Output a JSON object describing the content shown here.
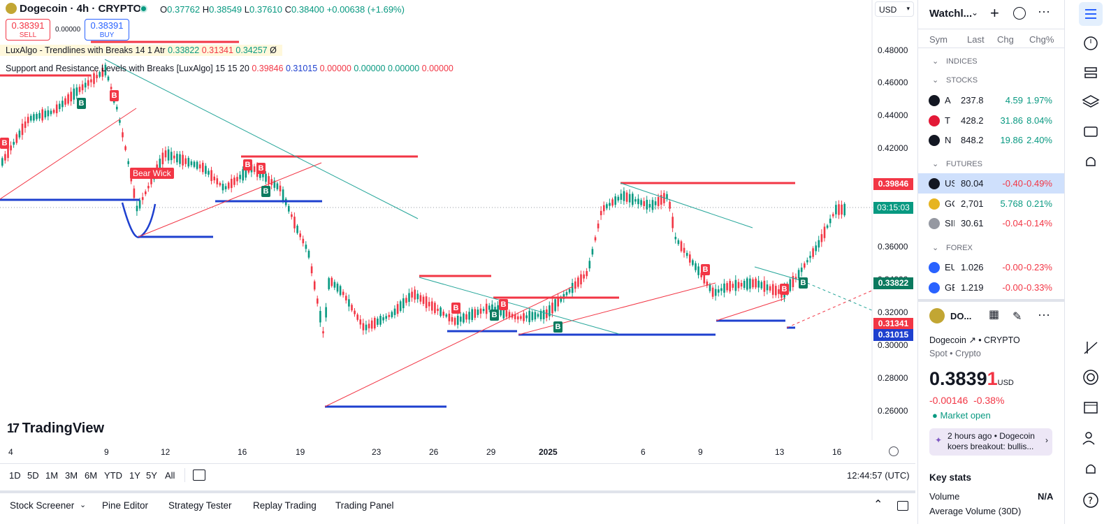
{
  "header": {
    "symbol_title": "Dogecoin · 4h · CRYPTO",
    "o_key": "O",
    "o_val": "0.37762",
    "h_key": "H",
    "h_val": "0.38549",
    "l_key": "L",
    "l_val": "0.37610",
    "c_key": "C",
    "c_val": "0.38400",
    "change": "+0.00638 (+1.69%)",
    "currency": "USD"
  },
  "trade": {
    "sell_price": "0.38391",
    "sell_label": "SELL",
    "spread": "0.00000",
    "buy_price": "0.38391",
    "buy_label": "BUY"
  },
  "indicators": [
    {
      "name": "LuxAlgo - Trendlines with Breaks 14 1 Atr",
      "v1": "0.33822",
      "v2": "0.31341",
      "v3": "0.34257",
      "v4": "Ø"
    },
    {
      "name": "Support and Resistance Levels with Breaks [LuxAlgo] 15 15 20",
      "v1": "0.39846",
      "v2": "0.31015",
      "v3": "0.00000",
      "v4": "0.00000",
      "v5": "0.00000",
      "v6": "0.00000"
    }
  ],
  "chart_labels": {
    "bear_wick": "Bear Wick",
    "b": "B",
    "watermark": "TradingView"
  },
  "price_axis": [
    "0.48000",
    "0.46000",
    "0.44000",
    "0.42000",
    "0.36000",
    "0.34000",
    "0.32000",
    "0.30000",
    "0.28000",
    "0.26000"
  ],
  "price_tags": {
    "resistance": "0.39846",
    "countdown": "03:15:03",
    "trend_upper": "0.33822",
    "trend_lower": "0.31341",
    "support": "0.31015"
  },
  "date_axis": [
    "4",
    "9",
    "12",
    "16",
    "19",
    "23",
    "26",
    "29",
    "2025",
    "6",
    "9",
    "13",
    "16"
  ],
  "range_buttons": [
    "1D",
    "5D",
    "1M",
    "3M",
    "6M",
    "YTD",
    "1Y",
    "5Y",
    "All"
  ],
  "clock": "12:44:57 (UTC)",
  "bottom_tabs": [
    "Stock Screener",
    "Pine Editor",
    "Strategy Tester",
    "Replay Trading",
    "Trading Panel"
  ],
  "watchlist": {
    "title": "Watchl...",
    "columns": [
      "Sym",
      "Last",
      "Chg",
      "Chg%"
    ],
    "sections": [
      "INDICES",
      "STOCKS",
      "FUTURES",
      "FOREX"
    ],
    "stocks": [
      {
        "sym": "A",
        "last": "237.8",
        "chg": "4.59",
        "chgp": "1.97%",
        "dir": "pos",
        "icon_color": "#131722"
      },
      {
        "sym": "T",
        "last": "428.2",
        "chg": "31.86",
        "chgp": "8.04%",
        "dir": "pos",
        "icon_color": "#e31937"
      },
      {
        "sym": "N",
        "last": "848.2",
        "chg": "19.86",
        "chgp": "2.40%",
        "dir": "pos",
        "icon_color": "#131722"
      }
    ],
    "futures": [
      {
        "sym": "US",
        "last": "80.04",
        "chg": "-0.40",
        "chgp": "-0.49%",
        "dir": "neg",
        "icon_color": "#131722",
        "highlight": true
      },
      {
        "sym": "GC",
        "last": "2,701",
        "chg": "5.768",
        "chgp": "0.21%",
        "dir": "pos",
        "icon_color": "#e6b422"
      },
      {
        "sym": "SIL",
        "last": "30.61",
        "chg": "-0.04",
        "chgp": "-0.14%",
        "dir": "neg",
        "icon_color": "#9598a1"
      }
    ],
    "forex": [
      {
        "sym": "EU",
        "last": "1.026",
        "chg": "-0.00",
        "chgp": "-0.23%",
        "dir": "neg",
        "icon_color": "#2962ff"
      },
      {
        "sym": "GE",
        "last": "1.219",
        "chg": "-0.00",
        "chgp": "-0.33%",
        "dir": "neg",
        "icon_color": "#2962ff"
      }
    ]
  },
  "details": {
    "short_name": "DO...",
    "name": "Dogecoin",
    "exchange": "CRYPTO",
    "type": "Spot • Crypto",
    "price_main": "0.3839",
    "price_last": "1",
    "price_currency": "USD",
    "change": "-0.00146",
    "change_pct": "-0.38%",
    "market_status": "Market open",
    "news": "2 hours ago • Dogecoin koers breakout: bullis...",
    "key_stats": "Key stats",
    "volume_label": "Volume",
    "volume_value": "N/A",
    "avg_volume_label": "Average Volume (30D)"
  },
  "colors": {
    "up": "#089981",
    "down": "#f23645",
    "resistance": "#f23645",
    "support": "#1e40cf",
    "trend": "#26a69a",
    "accent": "#2962ff"
  }
}
